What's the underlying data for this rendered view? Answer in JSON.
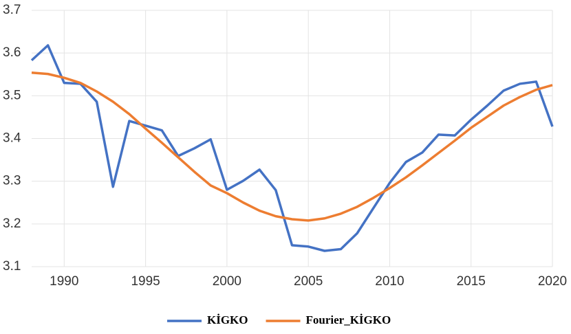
{
  "chart_data": {
    "type": "line",
    "x": [
      1988,
      1989,
      1990,
      1991,
      1992,
      1993,
      1994,
      1995,
      1996,
      1997,
      1998,
      1999,
      2000,
      2001,
      2002,
      2003,
      2004,
      2005,
      2006,
      2007,
      2008,
      2009,
      2010,
      2011,
      2012,
      2013,
      2014,
      2015,
      2016,
      2017,
      2018,
      2019,
      2020
    ],
    "series": [
      {
        "name": "KİGKO",
        "color": "#4472c4",
        "values": [
          3.583,
          3.618,
          3.53,
          3.528,
          3.486,
          3.287,
          3.441,
          3.43,
          3.419,
          3.359,
          3.377,
          3.398,
          3.28,
          3.301,
          3.327,
          3.279,
          3.15,
          3.147,
          3.137,
          3.141,
          3.178,
          3.237,
          3.296,
          3.345,
          3.367,
          3.409,
          3.407,
          3.444,
          3.477,
          3.512,
          3.528,
          3.533,
          3.428
        ]
      },
      {
        "name": "Fourier_KİGKO",
        "color": "#ed7d31",
        "values": [
          3.554,
          3.551,
          3.542,
          3.53,
          3.51,
          3.486,
          3.457,
          3.423,
          3.39,
          3.356,
          3.322,
          3.29,
          3.272,
          3.25,
          3.231,
          3.218,
          3.211,
          3.208,
          3.213,
          3.224,
          3.24,
          3.261,
          3.284,
          3.309,
          3.337,
          3.366,
          3.395,
          3.425,
          3.451,
          3.477,
          3.497,
          3.514,
          3.525
        ]
      }
    ],
    "xlim": [
      1988,
      2020
    ],
    "xticks": [
      1990,
      1995,
      2000,
      2005,
      2010,
      2015,
      2020
    ],
    "ylim": [
      3.1,
      3.7
    ],
    "yticks": [
      3.1,
      3.2,
      3.3,
      3.4,
      3.5,
      3.6,
      3.7
    ],
    "grid": true,
    "legend": "bottom"
  }
}
